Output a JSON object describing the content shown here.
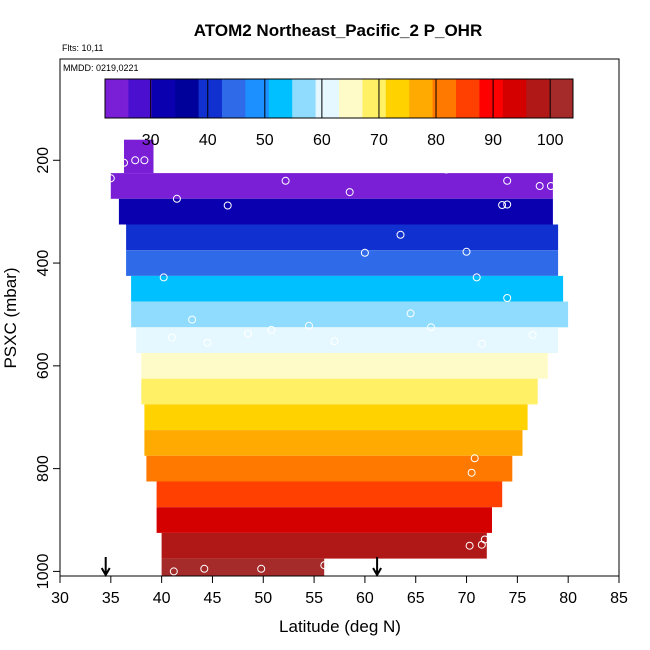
{
  "chart_data": {
    "type": "heatmap",
    "title": "ATOM2 Northeast_Pacific_2 P_OHR",
    "notes": [
      "Flts: 10,11",
      "MMDD: 0219,0221"
    ],
    "xlabel": "Latitude (deg N)",
    "ylabel": "PSXC (mbar)",
    "xlim": [
      30,
      85
    ],
    "ylim": [
      1000,
      0
    ],
    "x_ticks": [
      "30",
      "35",
      "40",
      "45",
      "50",
      "55",
      "60",
      "65",
      "70",
      "75",
      "80",
      "85"
    ],
    "y_ticks": [
      "200",
      "400",
      "600",
      "800",
      "1000"
    ],
    "colorbar": {
      "range": [
        22,
        104
      ],
      "ticks": [
        "30",
        "40",
        "50",
        "60",
        "70",
        "80",
        "90",
        "100"
      ],
      "palette": [
        "#7a1fd6",
        "#4b0fcf",
        "#0a00b0",
        "#00009a",
        "#1030d0",
        "#2f6ae8",
        "#1d90ff",
        "#00c0ff",
        "#8fdcff",
        "#e6f8ff",
        "#fffbc8",
        "#fff066",
        "#ffd200",
        "#ffaa00",
        "#ff7800",
        "#ff4000",
        "#ff0000",
        "#d40000",
        "#b01818",
        "#a52a2a"
      ]
    },
    "rows": [
      {
        "p": 200,
        "lat_min": 36.3,
        "lat_max": 39.2,
        "value": 24
      },
      {
        "p": 250,
        "lat_min": 35.0,
        "lat_max": 78.5,
        "value": 26
      },
      {
        "p": 300,
        "lat_min": 35.8,
        "lat_max": 78.5,
        "value": 31
      },
      {
        "p": 350,
        "lat_min": 36.5,
        "lat_max": 79.0,
        "value": 40
      },
      {
        "p": 400,
        "lat_min": 36.5,
        "lat_max": 79.0,
        "value": 46
      },
      {
        "p": 450,
        "lat_min": 37.0,
        "lat_max": 79.5,
        "value": 52
      },
      {
        "p": 500,
        "lat_min": 37.0,
        "lat_max": 80.0,
        "value": 55
      },
      {
        "p": 550,
        "lat_min": 37.5,
        "lat_max": 79.0,
        "value": 62
      },
      {
        "p": 600,
        "lat_min": 38.0,
        "lat_max": 78.0,
        "value": 66
      },
      {
        "p": 650,
        "lat_min": 38.0,
        "lat_max": 77.0,
        "value": 70
      },
      {
        "p": 700,
        "lat_min": 38.3,
        "lat_max": 76.0,
        "value": 75
      },
      {
        "p": 750,
        "lat_min": 38.3,
        "lat_max": 75.5,
        "value": 78
      },
      {
        "p": 800,
        "lat_min": 38.5,
        "lat_max": 74.5,
        "value": 83
      },
      {
        "p": 850,
        "lat_min": 39.5,
        "lat_max": 73.5,
        "value": 87
      },
      {
        "p": 900,
        "lat_min": 39.5,
        "lat_max": 72.5,
        "value": 92
      },
      {
        "p": 950,
        "lat_min": 40.0,
        "lat_max": 72.0,
        "value": 97
      },
      {
        "p": 1000,
        "lat_min": 40.0,
        "lat_max": 56.0,
        "value": 101
      }
    ],
    "points": [
      {
        "x": 35.0,
        "y": 235
      },
      {
        "x": 36.3,
        "y": 205
      },
      {
        "x": 37.4,
        "y": 200
      },
      {
        "x": 38.3,
        "y": 200
      },
      {
        "x": 41.5,
        "y": 275
      },
      {
        "x": 46.5,
        "y": 288
      },
      {
        "x": 52.2,
        "y": 240
      },
      {
        "x": 58.5,
        "y": 262
      },
      {
        "x": 68.0,
        "y": 218
      },
      {
        "x": 74.0,
        "y": 240
      },
      {
        "x": 77.2,
        "y": 250
      },
      {
        "x": 78.3,
        "y": 250
      },
      {
        "x": 73.5,
        "y": 287
      },
      {
        "x": 74.0,
        "y": 286
      },
      {
        "x": 63.5,
        "y": 345
      },
      {
        "x": 60.0,
        "y": 380
      },
      {
        "x": 70.0,
        "y": 378
      },
      {
        "x": 71.0,
        "y": 428
      },
      {
        "x": 40.2,
        "y": 428
      },
      {
        "x": 74.0,
        "y": 468
      },
      {
        "x": 80.0,
        "y": 462
      },
      {
        "x": 64.5,
        "y": 498
      },
      {
        "x": 43.0,
        "y": 510
      },
      {
        "x": 41.0,
        "y": 545
      },
      {
        "x": 44.5,
        "y": 555
      },
      {
        "x": 48.5,
        "y": 537
      },
      {
        "x": 50.8,
        "y": 530
      },
      {
        "x": 54.5,
        "y": 522
      },
      {
        "x": 57.0,
        "y": 552
      },
      {
        "x": 66.5,
        "y": 525
      },
      {
        "x": 71.5,
        "y": 557
      },
      {
        "x": 76.5,
        "y": 540
      },
      {
        "x": 70.8,
        "y": 780
      },
      {
        "x": 70.5,
        "y": 808
      },
      {
        "x": 70.3,
        "y": 950
      },
      {
        "x": 71.5,
        "y": 948
      },
      {
        "x": 71.8,
        "y": 938
      },
      {
        "x": 41.2,
        "y": 1000
      },
      {
        "x": 44.2,
        "y": 995
      },
      {
        "x": 49.8,
        "y": 995
      },
      {
        "x": 56.0,
        "y": 988
      }
    ],
    "arrows": [
      {
        "x": 34.5
      },
      {
        "x": 61.2
      }
    ]
  }
}
